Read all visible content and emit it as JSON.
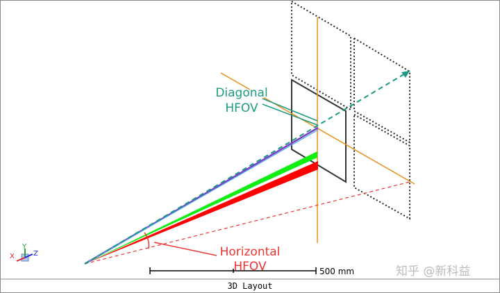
{
  "annotations": {
    "diagonal": {
      "line1": "Diagonal",
      "line2": "HFOV"
    },
    "horizontal": {
      "line1": "Horizontal",
      "line2": "HFOV"
    }
  },
  "scale_bar": "500 mm",
  "axes": [
    "X",
    "Y",
    "Z"
  ],
  "footer": "3D Layout",
  "watermark": "知乎 @新科益"
}
